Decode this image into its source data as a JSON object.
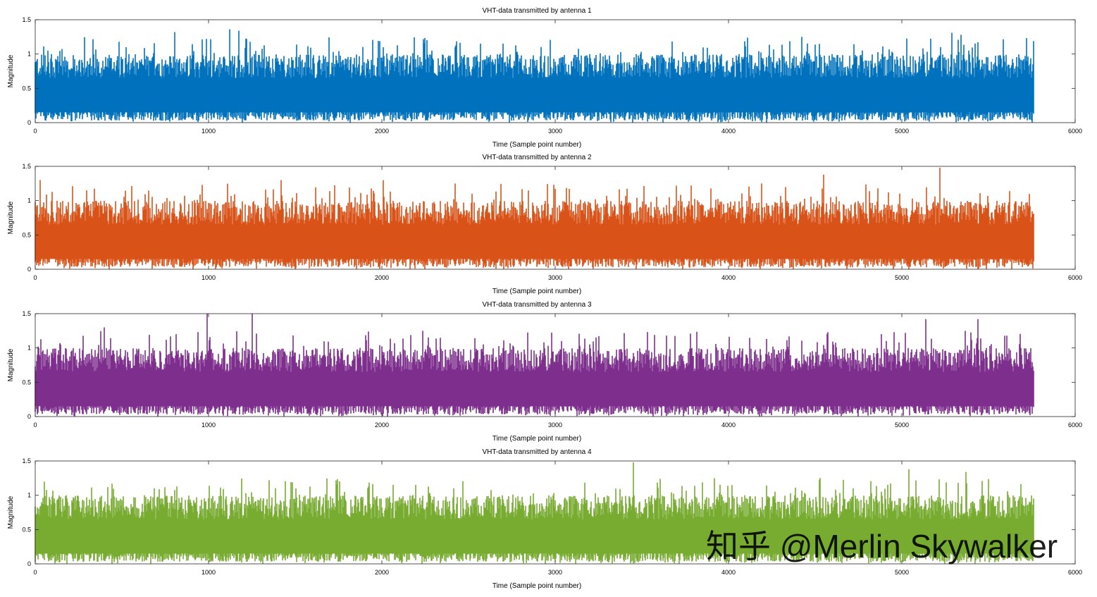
{
  "chart_data": [
    {
      "type": "line",
      "title": "VHT-data transmitted by antenna 1",
      "xlabel": "Time (Sample point number)",
      "ylabel": "Magnitude",
      "xlim": [
        0,
        6000
      ],
      "ylim": [
        0,
        1.5
      ],
      "xticks": [
        0,
        1000,
        2000,
        3000,
        4000,
        5000,
        6000
      ],
      "yticks": [
        0,
        0.5,
        1,
        1.5
      ],
      "xtick_labels": [
        "0",
        "1000",
        "2000",
        "3000",
        "4000",
        "5000",
        "6000"
      ],
      "ytick_labels": [
        "0",
        "0.5",
        "1",
        "1.5"
      ],
      "grid": false,
      "color": "#0072BD",
      "x_range": [
        0,
        5760
      ],
      "approx_mean": 0.45,
      "typical_band": [
        0.1,
        0.8
      ],
      "peaks": [
        {
          "x": 805,
          "y": 1.32
        },
        {
          "x": 1120,
          "y": 1.36
        },
        {
          "x": 1175,
          "y": 1.34
        },
        {
          "x": 5290,
          "y": 1.31
        },
        {
          "x": 5340,
          "y": 1.28
        }
      ]
    },
    {
      "type": "line",
      "title": "VHT-data transmitted by antenna 2",
      "xlabel": "Time (Sample point number)",
      "ylabel": "Magnitude",
      "xlim": [
        0,
        6000
      ],
      "ylim": [
        0,
        1.5
      ],
      "xticks": [
        0,
        1000,
        2000,
        3000,
        4000,
        5000,
        6000
      ],
      "yticks": [
        0,
        0.5,
        1,
        1.5
      ],
      "xtick_labels": [
        "0",
        "1000",
        "2000",
        "3000",
        "4000",
        "5000",
        "6000"
      ],
      "ytick_labels": [
        "0",
        "0.5",
        "1",
        "1.5"
      ],
      "grid": false,
      "color": "#D95319",
      "x_range": [
        0,
        5760
      ],
      "approx_mean": 0.45,
      "typical_band": [
        0.1,
        0.8
      ],
      "peaks": [
        {
          "x": 30,
          "y": 1.3
        },
        {
          "x": 1420,
          "y": 1.3
        },
        {
          "x": 2010,
          "y": 1.3
        },
        {
          "x": 4550,
          "y": 1.38
        },
        {
          "x": 5220,
          "y": 1.48
        }
      ]
    },
    {
      "type": "line",
      "title": "VHT-data transmitted by antenna 3",
      "xlabel": "Time (Sample point number)",
      "ylabel": "Magnitude",
      "xlim": [
        0,
        6000
      ],
      "ylim": [
        0,
        1.5
      ],
      "xticks": [
        0,
        1000,
        2000,
        3000,
        4000,
        5000,
        6000
      ],
      "yticks": [
        0,
        0.5,
        1,
        1.5
      ],
      "xtick_labels": [
        "0",
        "1000",
        "2000",
        "3000",
        "4000",
        "5000",
        "6000"
      ],
      "ytick_labels": [
        "0",
        "0.5",
        "1",
        "1.5"
      ],
      "grid": false,
      "color": "#7E2F8E",
      "x_range": [
        0,
        5760
      ],
      "approx_mean": 0.45,
      "typical_band": [
        0.1,
        0.8
      ],
      "peaks": [
        {
          "x": 400,
          "y": 1.3
        },
        {
          "x": 990,
          "y": 1.5
        },
        {
          "x": 1250,
          "y": 1.5
        },
        {
          "x": 5140,
          "y": 1.42
        },
        {
          "x": 5440,
          "y": 1.42
        }
      ]
    },
    {
      "type": "line",
      "title": "VHT-data transmitted by antenna 4",
      "xlabel": "Time (Sample point number)",
      "ylabel": "Magnitude",
      "xlim": [
        0,
        6000
      ],
      "ylim": [
        0,
        1.5
      ],
      "xticks": [
        0,
        1000,
        2000,
        3000,
        4000,
        5000,
        6000
      ],
      "yticks": [
        0,
        0.5,
        1,
        1.5
      ],
      "xtick_labels": [
        "0",
        "1000",
        "2000",
        "3000",
        "4000",
        "5000",
        "6000"
      ],
      "ytick_labels": [
        "0",
        "0.5",
        "1",
        "1.5"
      ],
      "grid": false,
      "color": "#77AC30",
      "x_range": [
        0,
        5760
      ],
      "approx_mean": 0.45,
      "typical_band": [
        0.1,
        0.8
      ],
      "peaks": [
        {
          "x": 1350,
          "y": 1.22
        },
        {
          "x": 3450,
          "y": 1.48
        },
        {
          "x": 4530,
          "y": 1.25
        },
        {
          "x": 5040,
          "y": 1.38
        },
        {
          "x": 5370,
          "y": 1.34
        }
      ]
    }
  ],
  "watermark": "知乎 @Merlin Skywalker"
}
